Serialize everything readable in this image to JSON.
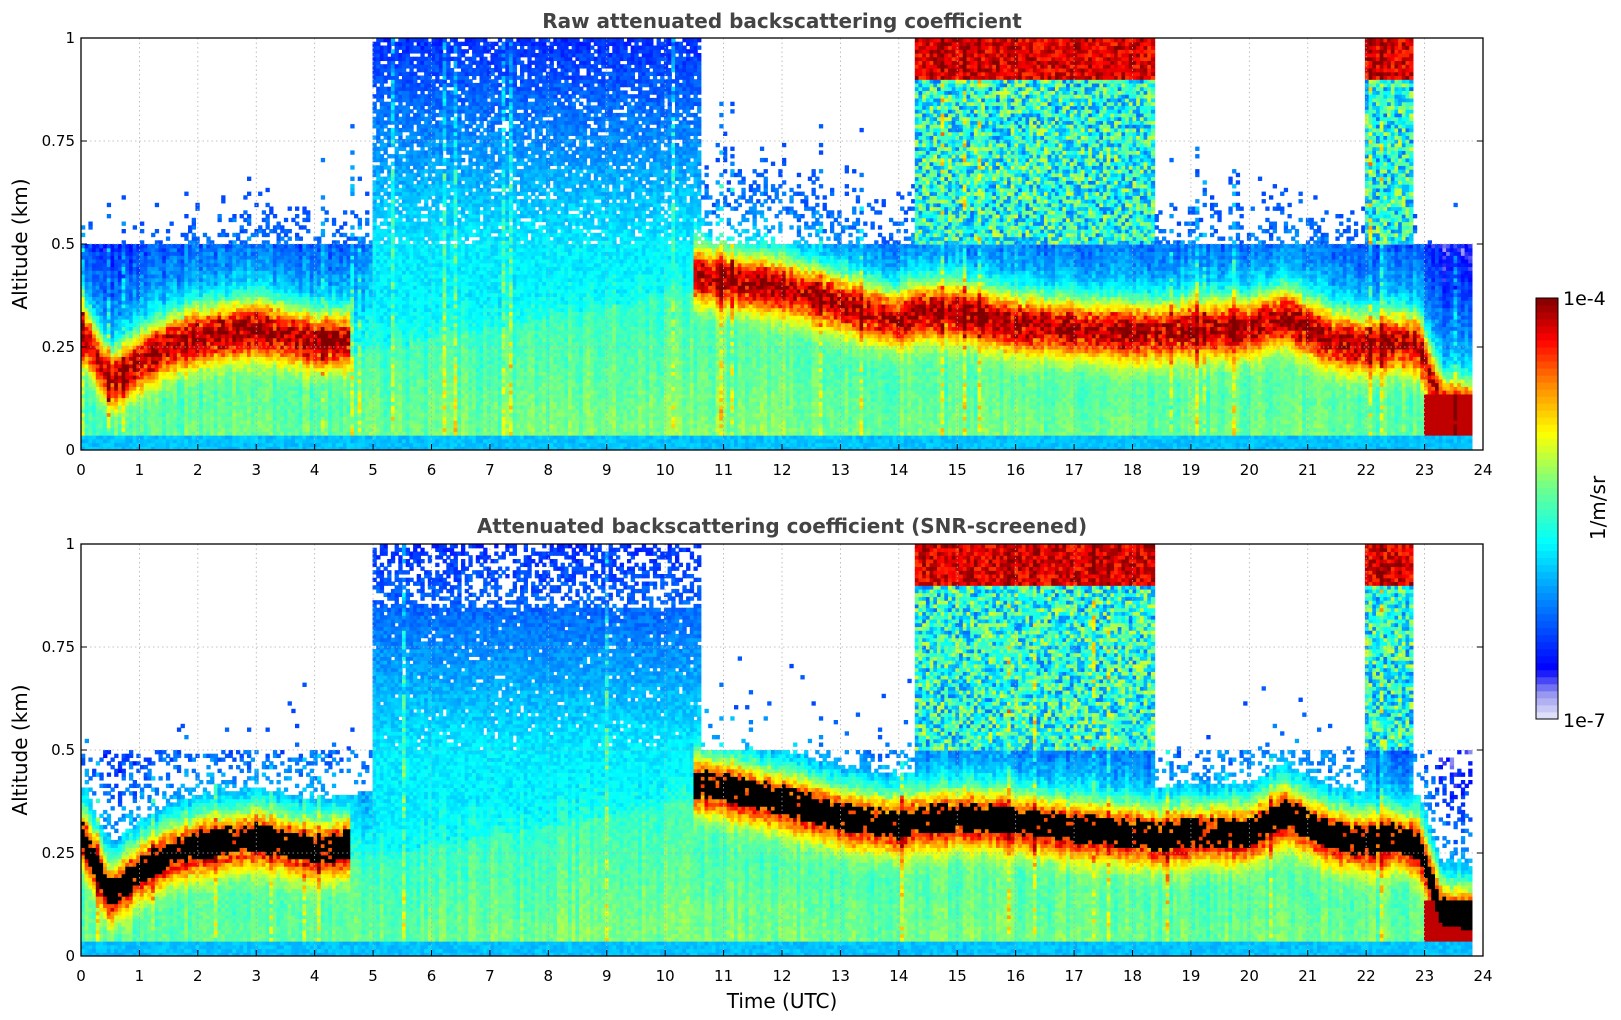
{
  "chart_data": [
    {
      "type": "heatmap",
      "title": "Raw attenuated backscattering coefficient",
      "xlabel": "",
      "ylabel": "Altitude (km)",
      "xlim": [
        0,
        24
      ],
      "ylim": [
        0,
        1
      ],
      "xticks": [
        "0",
        "1",
        "2",
        "3",
        "4",
        "5",
        "6",
        "7",
        "8",
        "9",
        "10",
        "11",
        "12",
        "13",
        "14",
        "15",
        "16",
        "17",
        "18",
        "19",
        "20",
        "21",
        "22",
        "23",
        "24"
      ],
      "yticks": [
        "0",
        "0.25",
        "0.5",
        "0.75",
        "1"
      ],
      "ytick_values": [
        0,
        0.25,
        0.5,
        0.75,
        1
      ],
      "grid": true,
      "screened": false,
      "layer_height_km": [
        {
          "t": 0.0,
          "h": 0.3
        },
        {
          "t": 0.5,
          "h": 0.17
        },
        {
          "t": 1.0,
          "h": 0.22
        },
        {
          "t": 1.5,
          "h": 0.26
        },
        {
          "t": 2.0,
          "h": 0.28
        },
        {
          "t": 3.0,
          "h": 0.3
        },
        {
          "t": 4.0,
          "h": 0.27
        },
        {
          "t": 4.5,
          "h": 0.27
        },
        {
          "t": 10.6,
          "h": 0.43
        },
        {
          "t": 11.0,
          "h": 0.42
        },
        {
          "t": 12.0,
          "h": 0.4
        },
        {
          "t": 13.0,
          "h": 0.36
        },
        {
          "t": 14.0,
          "h": 0.32
        },
        {
          "t": 14.3,
          "h": 0.34
        },
        {
          "t": 15.0,
          "h": 0.34
        },
        {
          "t": 16.0,
          "h": 0.31
        },
        {
          "t": 17.0,
          "h": 0.3
        },
        {
          "t": 18.0,
          "h": 0.29
        },
        {
          "t": 18.5,
          "h": 0.29
        },
        {
          "t": 19.0,
          "h": 0.3
        },
        {
          "t": 20.0,
          "h": 0.3
        },
        {
          "t": 20.6,
          "h": 0.33
        },
        {
          "t": 21.0,
          "h": 0.3
        },
        {
          "t": 21.5,
          "h": 0.27
        },
        {
          "t": 22.0,
          "h": 0.26
        },
        {
          "t": 22.5,
          "h": 0.27
        },
        {
          "t": 22.9,
          "h": 0.26
        },
        {
          "t": 23.3,
          "h": 0.11
        },
        {
          "t": 23.8,
          "h": 0.1
        }
      ]
    },
    {
      "type": "heatmap",
      "title": "Attenuated backscattering coefficient (SNR-screened)",
      "xlabel": "Time (UTC)",
      "ylabel": "Altitude (km)",
      "xlim": [
        0,
        24
      ],
      "ylim": [
        0,
        1
      ],
      "xticks": [
        "0",
        "1",
        "2",
        "3",
        "4",
        "5",
        "6",
        "7",
        "8",
        "9",
        "10",
        "11",
        "12",
        "13",
        "14",
        "15",
        "16",
        "17",
        "18",
        "19",
        "20",
        "21",
        "22",
        "23",
        "24"
      ],
      "yticks": [
        "0",
        "0.25",
        "0.5",
        "0.75",
        "1"
      ],
      "ytick_values": [
        0,
        0.25,
        0.5,
        0.75,
        1
      ],
      "grid": true,
      "screened": true,
      "layer_height_km": [
        {
          "t": 0.0,
          "h": 0.3
        },
        {
          "t": 0.5,
          "h": 0.15
        },
        {
          "t": 1.0,
          "h": 0.21
        },
        {
          "t": 1.5,
          "h": 0.25
        },
        {
          "t": 2.0,
          "h": 0.27
        },
        {
          "t": 3.0,
          "h": 0.29
        },
        {
          "t": 4.0,
          "h": 0.26
        },
        {
          "t": 4.5,
          "h": 0.27
        },
        {
          "t": 10.6,
          "h": 0.42
        },
        {
          "t": 11.0,
          "h": 0.41
        },
        {
          "t": 12.0,
          "h": 0.38
        },
        {
          "t": 13.0,
          "h": 0.34
        },
        {
          "t": 14.0,
          "h": 0.32
        },
        {
          "t": 14.3,
          "h": 0.33
        },
        {
          "t": 15.0,
          "h": 0.34
        },
        {
          "t": 16.0,
          "h": 0.33
        },
        {
          "t": 17.0,
          "h": 0.31
        },
        {
          "t": 18.0,
          "h": 0.3
        },
        {
          "t": 18.5,
          "h": 0.29
        },
        {
          "t": 19.0,
          "h": 0.3
        },
        {
          "t": 20.0,
          "h": 0.3
        },
        {
          "t": 20.6,
          "h": 0.35
        },
        {
          "t": 21.0,
          "h": 0.32
        },
        {
          "t": 21.5,
          "h": 0.29
        },
        {
          "t": 22.0,
          "h": 0.28
        },
        {
          "t": 22.5,
          "h": 0.29
        },
        {
          "t": 22.9,
          "h": 0.27
        },
        {
          "t": 23.3,
          "h": 0.11
        },
        {
          "t": 23.8,
          "h": 0.1
        }
      ]
    }
  ],
  "colorbar": {
    "label": "1/m/sr",
    "max_label": "1e-4",
    "min_label": "1e-7",
    "range": [
      1e-07,
      0.0001
    ],
    "scale": "log",
    "colors": [
      "#e8e8f8",
      "#0000ff",
      "#00a0ff",
      "#00ffff",
      "#70ff90",
      "#ffff00",
      "#ff8000",
      "#ff0000",
      "#800000"
    ]
  }
}
